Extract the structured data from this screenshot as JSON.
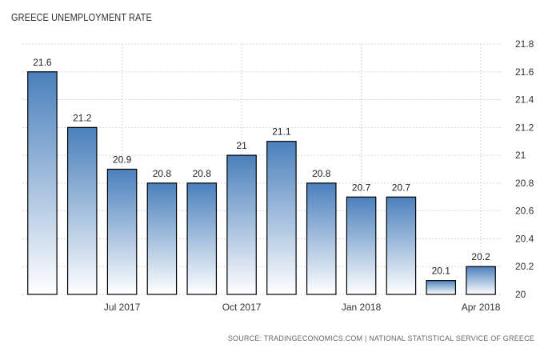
{
  "chart_data": {
    "type": "bar",
    "title": "GREECE UNEMPLOYMENT RATE",
    "categories": [
      "",
      "",
      "Jul 2017",
      "",
      "",
      "Oct 2017",
      "",
      "",
      "Jan 2018",
      "",
      "",
      "Apr 2018"
    ],
    "values": [
      21.6,
      21.2,
      20.9,
      20.8,
      20.8,
      21.0,
      21.1,
      20.8,
      20.7,
      20.7,
      20.1,
      20.2
    ],
    "data_labels": [
      "21.6",
      "21.2",
      "20.9",
      "20.8",
      "20.8",
      "21",
      "21.1",
      "20.8",
      "20.7",
      "20.7",
      "20.1",
      "20.2"
    ],
    "ylim": [
      20,
      21.8
    ],
    "y_ticks": [
      20,
      20.2,
      20.4,
      20.6,
      20.8,
      21,
      21.2,
      21.4,
      21.6,
      21.8
    ],
    "y_tick_labels": [
      "20",
      "20.2",
      "20.4",
      "20.6",
      "20.8",
      "21",
      "21.2",
      "21.4",
      "21.6",
      "21.8"
    ],
    "y_axis_side": "right",
    "grid": true,
    "bar_color_top": "#4a80bc",
    "bar_color_bottom": "#ffffff",
    "bar_stroke": "#000000",
    "source": "SOURCE: TRADINGECONOMICS.COM | NATIONAL STATISTICAL SERVICE OF GREECE"
  }
}
